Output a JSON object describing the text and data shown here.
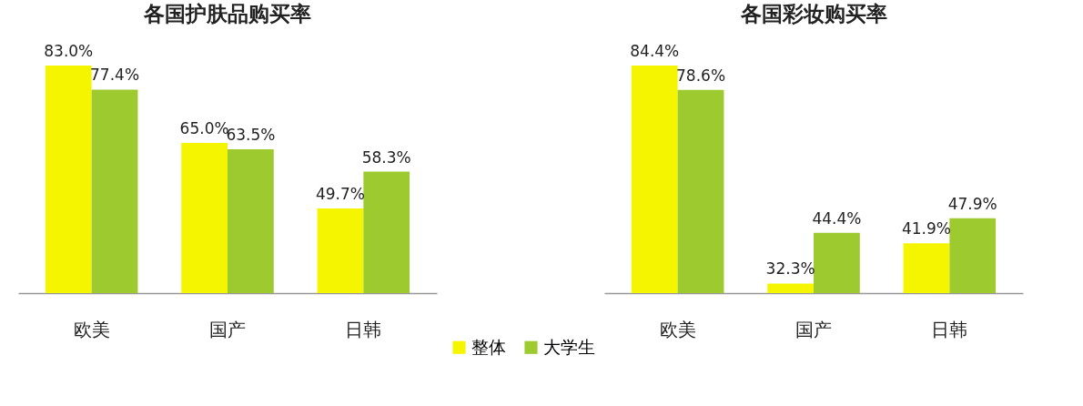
{
  "chart_data": [
    {
      "type": "bar",
      "title": "各国护肤品购买率",
      "categories": [
        "欧美",
        "国产",
        "日韩"
      ],
      "ylim": [
        30,
        83
      ],
      "tick_labels": "x",
      "legend": "bottom",
      "grid": false,
      "series": [
        {
          "name": "整体",
          "color": "#f6f500",
          "values": [
            83.0,
            65.0,
            49.7
          ],
          "value_labels": [
            "83.0%",
            "65.0%",
            "49.7%"
          ]
        },
        {
          "name": "大学生",
          "color": "#9dca2e",
          "values": [
            77.4,
            63.5,
            58.3
          ],
          "value_labels": [
            "77.4%",
            "63.5%",
            "58.3%"
          ]
        }
      ]
    },
    {
      "type": "bar",
      "title": "各国彩妆购买率",
      "categories": [
        "欧美",
        "国产",
        "日韩"
      ],
      "ylim": [
        30,
        84.4
      ],
      "tick_labels": "x",
      "grid": false,
      "series": [
        {
          "color": "#f6f500",
          "values": [
            84.4,
            32.3,
            41.9
          ],
          "value_labels": [
            "84.4%",
            "32.3%",
            "41.9%"
          ]
        },
        {
          "color": "#9dca2e",
          "values": [
            78.6,
            44.4,
            47.9
          ],
          "value_labels": [
            "78.6%",
            "44.4%",
            "47.9%"
          ]
        }
      ]
    }
  ]
}
